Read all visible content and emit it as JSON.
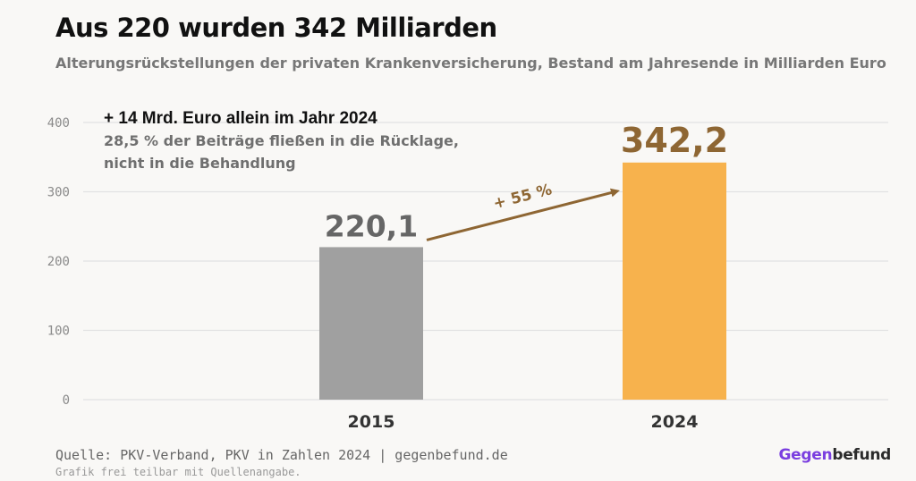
{
  "title": "Aus 220 wurden 342 Milliarden",
  "subtitle": "Alterungsrückstellungen der privaten Krankenversicherung, Bestand am Jahresende in Milliarden Euro",
  "chart_data": {
    "type": "bar",
    "categories": [
      "2015",
      "2024"
    ],
    "values": [
      220.1,
      342.2
    ],
    "value_labels": [
      "220,1",
      "342,2"
    ],
    "ylim": [
      0,
      400
    ],
    "yticks": [
      0,
      100,
      200,
      300,
      400
    ],
    "grid": true,
    "colors": [
      "#a0a0a0",
      "#f7b24d"
    ],
    "value_label_colors": [
      "#666666",
      "#8e6633"
    ],
    "change_label": "+ 55 %",
    "change_color": "#8e6633",
    "annotation": {
      "headline": "+ 14 Mrd. Euro allein im Jahr 2024",
      "line1": "28,5 % der Beiträge fließen in die Rücklage,",
      "line2": "nicht in die Behandlung"
    }
  },
  "footer": {
    "source": "Quelle: PKV-Verband, PKV in Zahlen 2024 | gegenbefund.de",
    "note": "Grafik frei teilbar mit Quellenangabe.",
    "brand_part1": "Gegen",
    "brand_part2": "befund"
  }
}
